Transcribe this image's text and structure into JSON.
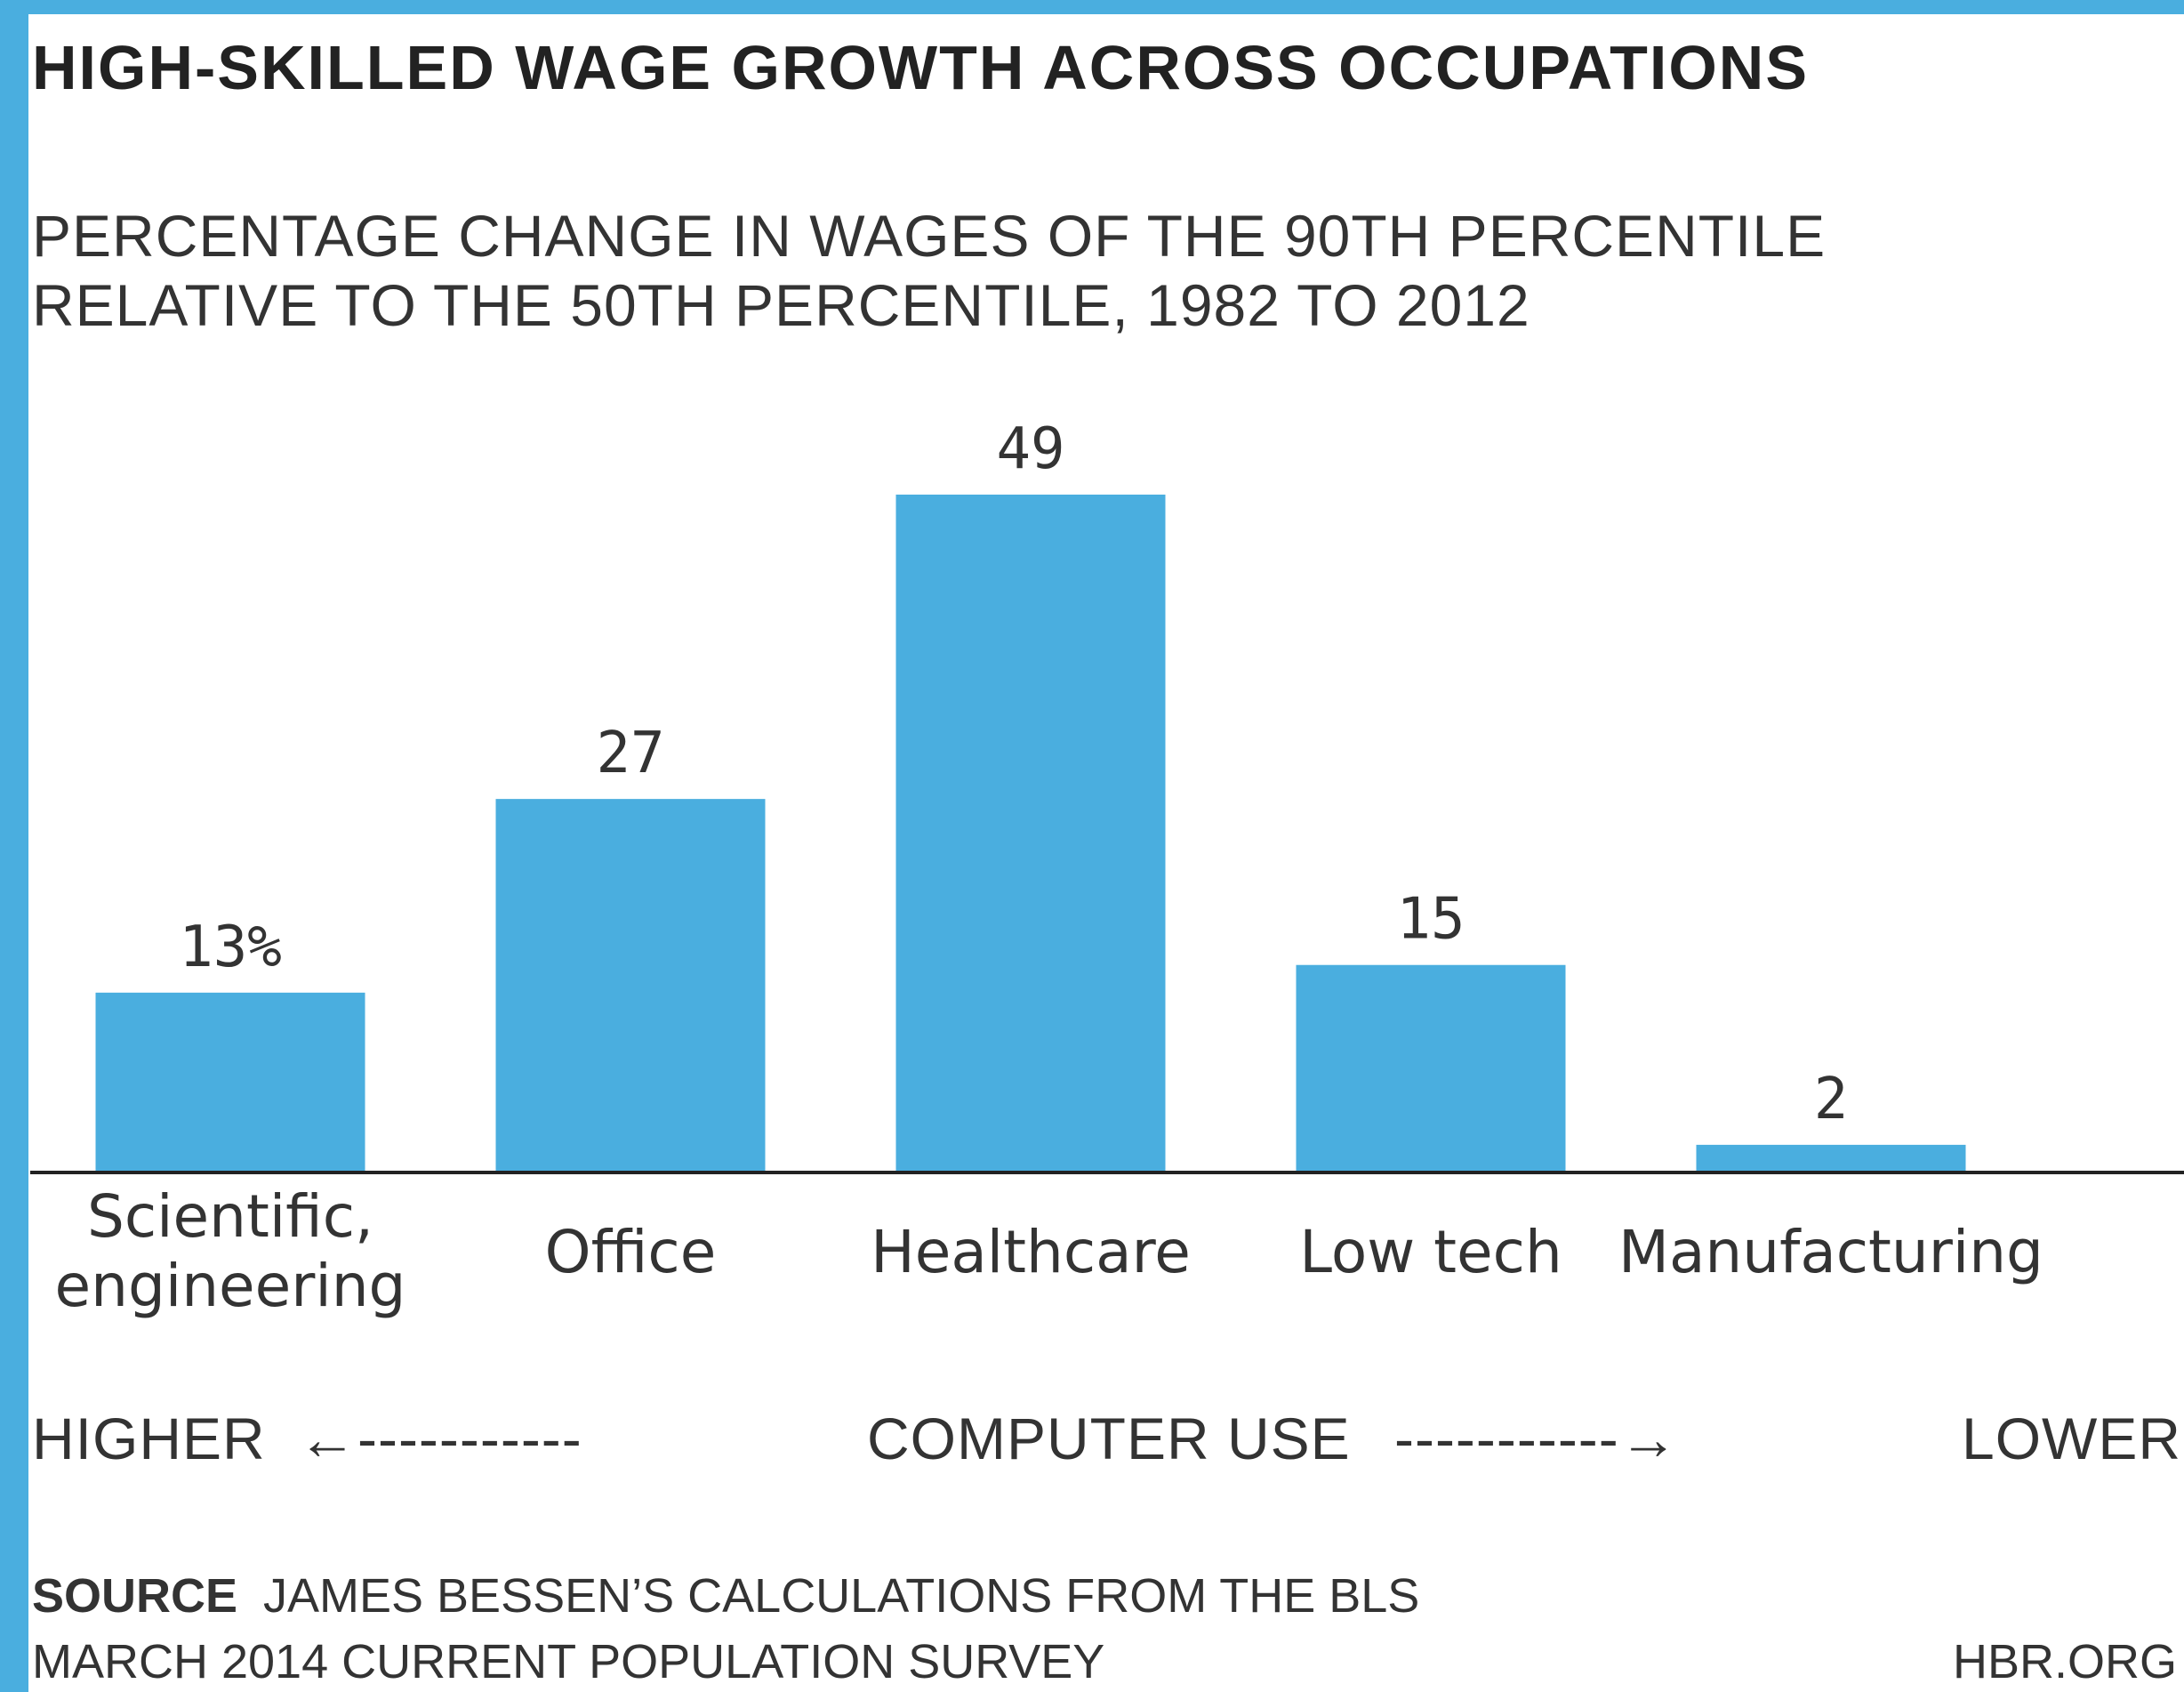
{
  "chart_data": {
    "type": "bar",
    "title": "HIGH-SKILLED WAGE GROWTH ACROSS OCCUPATIONS",
    "subtitle_lines": [
      "PERCENTAGE CHANGE IN WAGES OF THE 90TH PERCENTILE",
      "RELATIVE TO THE 50TH PERCENTILE, 1982 TO 2012"
    ],
    "categories": [
      [
        "Scientific,",
        "engineering"
      ],
      [
        "Office"
      ],
      [
        "Healthcare"
      ],
      [
        "Low tech"
      ],
      [
        "Manufacturing"
      ]
    ],
    "values": [
      13,
      27,
      49,
      15,
      2
    ],
    "value_labels": [
      "13%",
      "27",
      "49",
      "15",
      "2"
    ],
    "ylim": [
      0,
      49
    ],
    "bar_color": "#4aaedf",
    "axis_annotation": {
      "left": "HIGHER",
      "left_arrow": "←-----------",
      "center": "COMPUTER USE",
      "right_arrow": "-----------→",
      "right": "LOWER"
    },
    "source_label": "SOURCE",
    "source_line1": "JAMES BESSEN’S CALCULATIONS FROM THE BLS",
    "source_line2": "MARCH 2014 CURRENT POPULATION SURVEY",
    "credit": "HBR.ORG"
  },
  "colors": {
    "border": "#4aaedf",
    "background": "#ffffff",
    "axis_line": "#222222"
  }
}
